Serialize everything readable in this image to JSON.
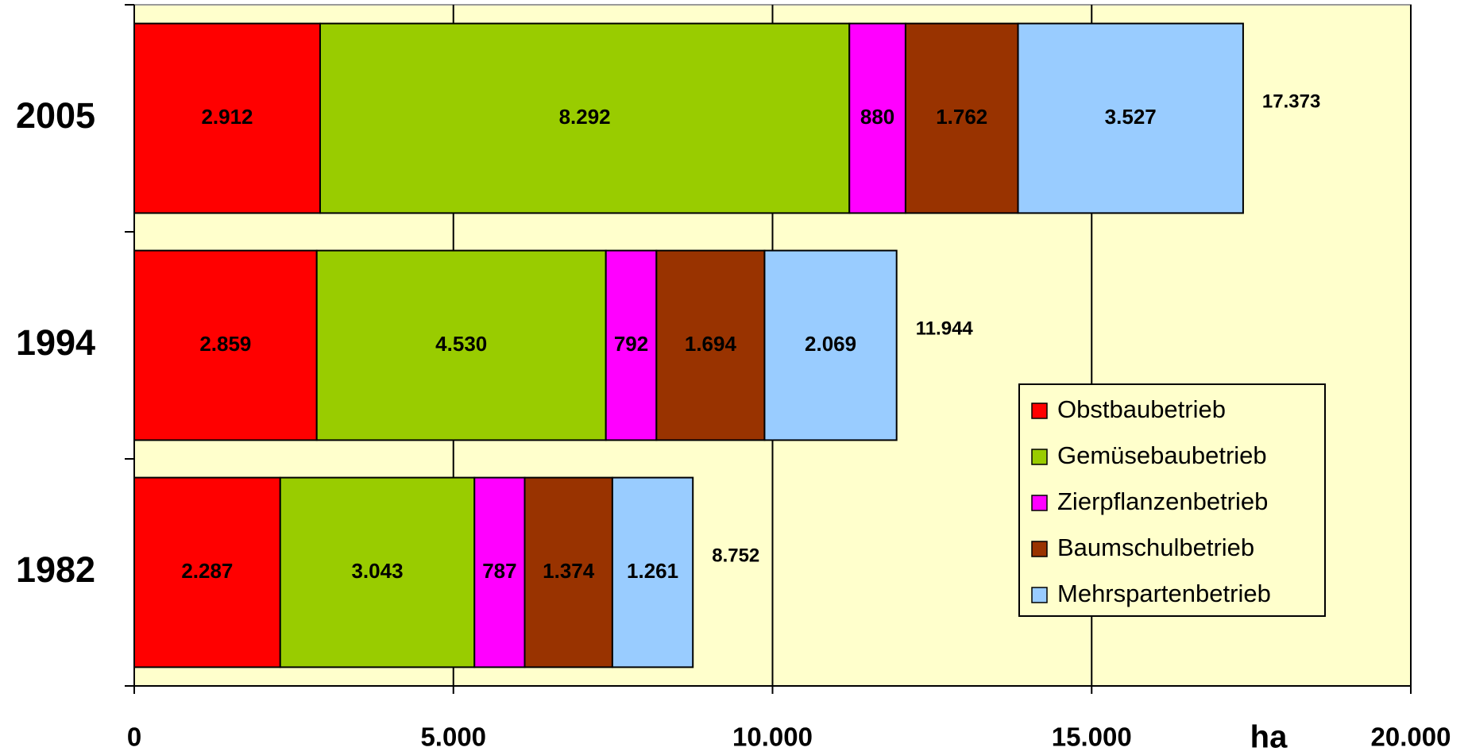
{
  "chart_data": {
    "type": "stacked-bar-horizontal",
    "categories": [
      "2005",
      "1994",
      "1982"
    ],
    "series": [
      {
        "name": "Obstbaubetrieb",
        "color": "#ff0000",
        "values": [
          2912,
          2859,
          2287
        ],
        "value_labels": [
          "2.912",
          "2.859",
          "2.287"
        ]
      },
      {
        "name": "Gemüsebaubetrieb",
        "color": "#99cc00",
        "values": [
          8292,
          4530,
          3043
        ],
        "value_labels": [
          "8.292",
          "4.530",
          "3.043"
        ]
      },
      {
        "name": "Zierpflanzenbetrieb",
        "color": "#ff00ff",
        "values": [
          880,
          792,
          787
        ],
        "value_labels": [
          "880",
          "792",
          "787"
        ]
      },
      {
        "name": "Baumschulbetrieb",
        "color": "#993300",
        "values": [
          1762,
          1694,
          1374
        ],
        "value_labels": [
          "1.762",
          "1.694",
          "1.374"
        ]
      },
      {
        "name": "Mehrspartenbetrieb",
        "color": "#99ccff",
        "values": [
          3527,
          2069,
          1261
        ],
        "value_labels": [
          "3.527",
          "2.069",
          "1.261"
        ]
      }
    ],
    "totals": {
      "values": [
        17373,
        11944,
        8752
      ],
      "value_labels": [
        "17.373",
        "11.944",
        "8.752"
      ]
    },
    "x_label": "ha",
    "xlim": [
      0,
      20000
    ],
    "xticks": [
      0,
      {
        "value": 5000,
        "label": "5.000"
      },
      {
        "value": 10000,
        "label": "10.000"
      },
      {
        "value": 15000,
        "label": "15.000"
      },
      {
        "value": 20000,
        "label": "20.000"
      }
    ],
    "grid": true,
    "legend": "center right",
    "background": "#ffffcc"
  }
}
